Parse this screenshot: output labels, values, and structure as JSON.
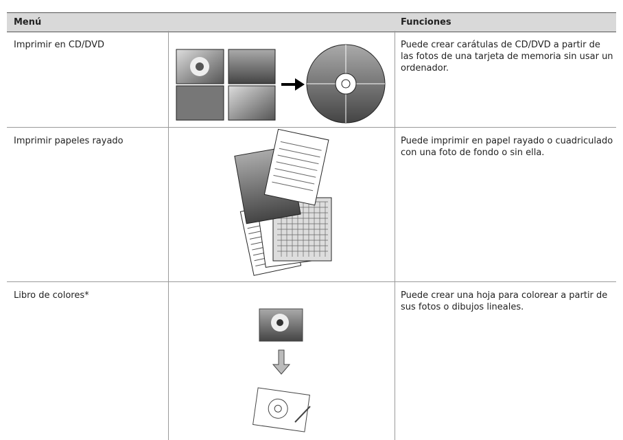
{
  "header": {
    "menu": "Menú",
    "functions": "Funciones"
  },
  "rows": [
    {
      "menu": "Imprimir en CD/DVD",
      "function": "Puede crear carátulas de CD/DVD a partir de las fotos de una tarjeta de memoria sin usar un ordenador."
    },
    {
      "menu": "Imprimir papeles rayado",
      "function": "Puede imprimir en papel rayado o cuadriculado con una foto de fondo o sin ella."
    },
    {
      "menu": "Libro de colores*",
      "function": "Puede crear una hoja para colorear a partir de sus fotos o dibujos lineales."
    }
  ]
}
